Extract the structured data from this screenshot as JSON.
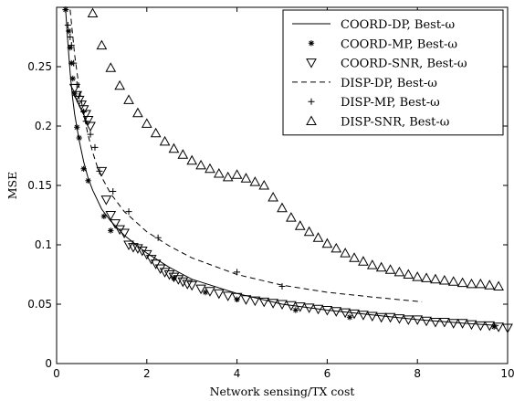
{
  "chart_data": {
    "type": "line",
    "title": "",
    "xlabel": "Network sensing/TX cost",
    "ylabel": "MSE",
    "xlim": [
      0,
      10
    ],
    "ylim": [
      0,
      0.3
    ],
    "xticks": [
      0,
      2,
      4,
      6,
      8,
      10
    ],
    "yticks": [
      0,
      0.05,
      0.1,
      0.15,
      0.2,
      0.25
    ],
    "ytick_labels": [
      "0",
      "0.05",
      "0.1",
      "0.15",
      "0.2",
      "0.25"
    ],
    "grid": false,
    "legend_position": "top-right",
    "series": [
      {
        "name": "COORD-DP, Best-ω",
        "style": "solid",
        "marker": "none",
        "x": [
          0.2,
          0.25,
          0.3,
          0.35,
          0.4,
          0.5,
          0.6,
          0.7,
          0.8,
          1.0,
          1.2,
          1.5,
          2.0,
          2.5,
          3.0,
          4.0,
          5.0,
          6.0,
          7.0,
          8.0,
          9.0,
          9.8
        ],
        "y": [
          0.298,
          0.27,
          0.245,
          0.225,
          0.21,
          0.188,
          0.17,
          0.156,
          0.146,
          0.13,
          0.12,
          0.108,
          0.093,
          0.081,
          0.071,
          0.059,
          0.05,
          0.045,
          0.041,
          0.037,
          0.034,
          0.032
        ]
      },
      {
        "name": "COORD-MP, Best-ω",
        "style": "none",
        "marker": "asterisk",
        "x": [
          0.2,
          0.27,
          0.3,
          0.33,
          0.36,
          0.4,
          0.45,
          0.5,
          0.6,
          0.7,
          1.05,
          1.2,
          2.6,
          3.3,
          4.0,
          5.3,
          6.5,
          9.7
        ],
        "y": [
          0.298,
          0.28,
          0.266,
          0.253,
          0.24,
          0.227,
          0.199,
          0.19,
          0.164,
          0.154,
          0.124,
          0.112,
          0.072,
          0.06,
          0.054,
          0.045,
          0.039,
          0.031
        ]
      },
      {
        "name": "COORD-SNR, Best-ω",
        "style": "none",
        "marker": "triangle-down",
        "x": [
          0.4,
          0.45,
          0.5,
          0.55,
          0.6,
          0.65,
          0.7,
          0.75,
          1.0,
          1.1,
          1.2,
          1.3,
          1.4,
          1.5,
          1.6,
          1.7,
          1.8,
          1.9,
          2.0,
          2.1,
          2.2,
          2.3,
          2.4,
          2.5,
          2.6,
          2.7,
          2.8,
          2.9,
          3.0,
          3.2,
          3.4,
          3.6,
          3.8,
          4.0,
          4.2,
          4.4,
          4.6,
          4.8,
          5.0,
          5.2,
          5.4,
          5.6,
          5.8,
          6.0,
          6.2,
          6.4,
          6.6,
          6.8,
          7.0,
          7.2,
          7.4,
          7.6,
          7.8,
          8.0,
          8.2,
          8.4,
          8.6,
          8.8,
          9.0,
          9.2,
          9.4,
          9.6,
          9.8,
          10.0
        ],
        "y": [
          0.232,
          0.226,
          0.222,
          0.218,
          0.214,
          0.21,
          0.205,
          0.2,
          0.162,
          0.138,
          0.125,
          0.118,
          0.113,
          0.11,
          0.1,
          0.098,
          0.097,
          0.095,
          0.092,
          0.088,
          0.084,
          0.08,
          0.077,
          0.075,
          0.073,
          0.071,
          0.069,
          0.067,
          0.066,
          0.063,
          0.061,
          0.059,
          0.057,
          0.056,
          0.054,
          0.053,
          0.052,
          0.051,
          0.05,
          0.049,
          0.048,
          0.047,
          0.046,
          0.045,
          0.044,
          0.043,
          0.042,
          0.041,
          0.04,
          0.039,
          0.039,
          0.038,
          0.037,
          0.037,
          0.036,
          0.035,
          0.035,
          0.034,
          0.034,
          0.033,
          0.032,
          0.032,
          0.031,
          0.03
        ]
      },
      {
        "name": "DISP-DP, Best-ω",
        "style": "dashed",
        "marker": "none",
        "x": [
          0.3,
          0.4,
          0.5,
          0.6,
          0.7,
          0.8,
          0.9,
          1.0,
          1.2,
          1.5,
          2.0,
          2.5,
          3.0,
          4.0,
          5.0,
          6.0,
          7.0,
          8.1
        ],
        "y": [
          0.298,
          0.26,
          0.232,
          0.21,
          0.192,
          0.178,
          0.166,
          0.157,
          0.143,
          0.128,
          0.111,
          0.099,
          0.089,
          0.075,
          0.066,
          0.06,
          0.056,
          0.052
        ]
      },
      {
        "name": "DISP-MP, Best-ω",
        "style": "none",
        "marker": "plus",
        "x": [
          0.2,
          0.25,
          0.3,
          0.33,
          0.38,
          0.45,
          0.5,
          0.6,
          0.65,
          0.75,
          0.85,
          0.95,
          1.25,
          1.6,
          2.25,
          4.0,
          5.0
        ],
        "y": [
          0.298,
          0.285,
          0.275,
          0.268,
          0.253,
          0.235,
          0.225,
          0.212,
          0.204,
          0.193,
          0.182,
          0.162,
          0.145,
          0.128,
          0.106,
          0.077,
          0.065
        ]
      },
      {
        "name": "DISP-SNR, Best-ω",
        "style": "none",
        "marker": "triangle-up",
        "x": [
          0.8,
          1.0,
          1.2,
          1.4,
          1.6,
          1.8,
          2.0,
          2.2,
          2.4,
          2.6,
          2.8,
          3.0,
          3.2,
          3.4,
          3.6,
          3.8,
          4.0,
          4.2,
          4.4,
          4.6,
          4.8,
          5.0,
          5.2,
          5.4,
          5.6,
          5.8,
          6.0,
          6.2,
          6.4,
          6.6,
          6.8,
          7.0,
          7.2,
          7.4,
          7.6,
          7.8,
          8.0,
          8.2,
          8.4,
          8.6,
          8.8,
          9.0,
          9.2,
          9.4,
          9.6,
          9.8
        ],
        "y": [
          0.295,
          0.268,
          0.249,
          0.234,
          0.222,
          0.211,
          0.202,
          0.194,
          0.187,
          0.181,
          0.176,
          0.171,
          0.167,
          0.164,
          0.16,
          0.157,
          0.159,
          0.156,
          0.153,
          0.15,
          0.14,
          0.131,
          0.123,
          0.116,
          0.111,
          0.106,
          0.101,
          0.097,
          0.093,
          0.089,
          0.086,
          0.083,
          0.081,
          0.079,
          0.077,
          0.075,
          0.073,
          0.072,
          0.071,
          0.07,
          0.069,
          0.068,
          0.067,
          0.067,
          0.066,
          0.065
        ]
      }
    ]
  },
  "colors": {
    "line": "#000000",
    "background": "#ffffff"
  }
}
